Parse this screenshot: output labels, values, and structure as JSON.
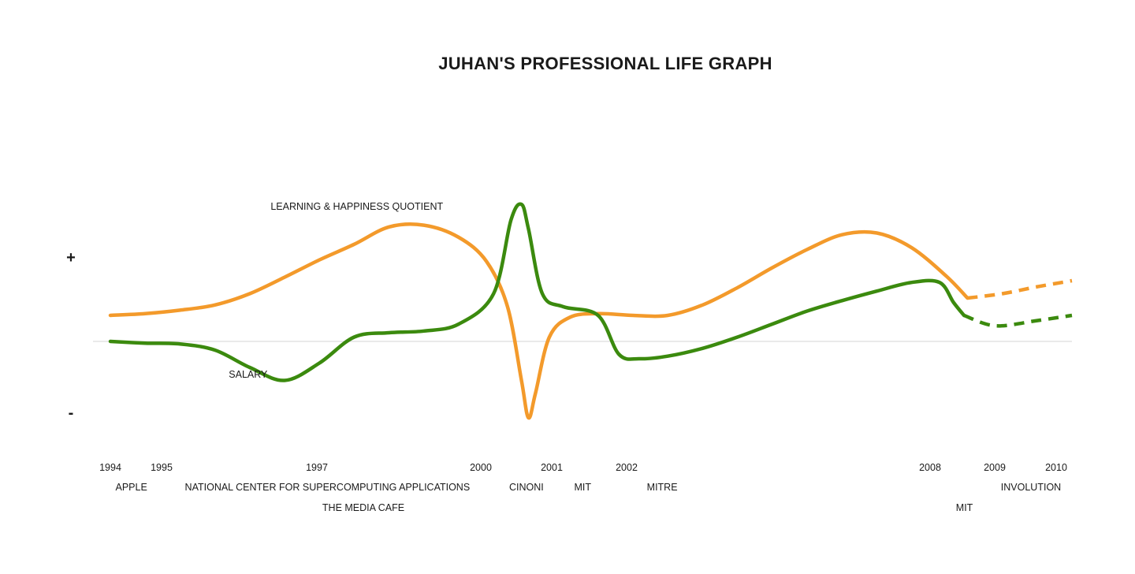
{
  "chart_data": {
    "type": "line",
    "title": "JUHAN'S PROFESSIONAL LIFE GRAPH",
    "y_axis": {
      "plus_label": "+",
      "minus_label": "-",
      "range": [
        -1,
        1
      ]
    },
    "colors": {
      "learning": "#f39a2b",
      "salary": "#3b8a0e",
      "baseline": "#dddddd"
    },
    "years": [
      "1994",
      "1995",
      "1997",
      "2000",
      "2001",
      "2002",
      "2008",
      "2009",
      "2010"
    ],
    "employers": [
      {
        "label": "APPLE",
        "year": 1994.1
      },
      {
        "label": "NATIONAL CENTER FOR SUPERCOMPUTING APPLICATIONS",
        "year": 1995.3
      },
      {
        "label": "THE MEDIA CAFE",
        "year": 1997.1,
        "row": 2
      },
      {
        "label": "CINONI",
        "year": 2000.4
      },
      {
        "label": "MIT",
        "year": 2001.3
      },
      {
        "label": "MITRE",
        "year": 2002.4
      },
      {
        "label": "INVOLUTION",
        "year": 2009.1
      },
      {
        "label": "MIT",
        "year": 2008.4,
        "row": 2
      }
    ],
    "series": [
      {
        "name": "LEARNING & HAPPINESS QUOTIENT",
        "key": "learning",
        "label_year": 1996.3,
        "label_value": 1.52,
        "solid": [
          [
            1994.0,
            0.3
          ],
          [
            1994.5,
            0.32
          ],
          [
            1995.0,
            0.36
          ],
          [
            1995.5,
            0.42
          ],
          [
            1996.0,
            0.55
          ],
          [
            1996.5,
            0.74
          ],
          [
            1997.0,
            0.94
          ],
          [
            1997.5,
            1.12
          ],
          [
            1998.0,
            1.32
          ],
          [
            1998.5,
            1.34
          ],
          [
            1999.0,
            1.2
          ],
          [
            1999.4,
            0.92
          ],
          [
            1999.7,
            0.4
          ],
          [
            1999.9,
            -0.45
          ],
          [
            2000.0,
            -0.88
          ],
          [
            2000.1,
            -0.6
          ],
          [
            2000.3,
            0.05
          ],
          [
            2000.6,
            0.28
          ],
          [
            2001.0,
            0.32
          ],
          [
            2001.5,
            0.3
          ],
          [
            2002.0,
            0.3
          ],
          [
            2002.5,
            0.42
          ],
          [
            2003.0,
            0.62
          ],
          [
            2003.5,
            0.85
          ],
          [
            2004.0,
            1.06
          ],
          [
            2004.5,
            1.23
          ],
          [
            2005.0,
            1.25
          ],
          [
            2005.5,
            1.08
          ],
          [
            2006.0,
            0.75
          ],
          [
            2006.3,
            0.5
          ]
        ],
        "projected": [
          [
            2006.3,
            0.5
          ],
          [
            2006.8,
            0.55
          ],
          [
            2007.3,
            0.63
          ],
          [
            2007.8,
            0.7
          ]
        ]
      },
      {
        "name": "SALARY",
        "key": "salary",
        "label_year": 1995.7,
        "label_value": -0.42,
        "solid": [
          [
            1994.0,
            0.0
          ],
          [
            1994.5,
            -0.02
          ],
          [
            1995.0,
            -0.03
          ],
          [
            1995.5,
            -0.1
          ],
          [
            1996.0,
            -0.3
          ],
          [
            1996.5,
            -0.45
          ],
          [
            1997.0,
            -0.25
          ],
          [
            1997.5,
            0.05
          ],
          [
            1998.0,
            0.1
          ],
          [
            1998.5,
            0.12
          ],
          [
            1999.0,
            0.2
          ],
          [
            1999.5,
            0.55
          ],
          [
            1999.75,
            1.4
          ],
          [
            1999.9,
            1.58
          ],
          [
            2000.0,
            1.3
          ],
          [
            2000.2,
            0.55
          ],
          [
            2000.5,
            0.4
          ],
          [
            2001.0,
            0.3
          ],
          [
            2001.3,
            -0.15
          ],
          [
            2001.6,
            -0.2
          ],
          [
            2002.0,
            -0.17
          ],
          [
            2002.5,
            -0.08
          ],
          [
            2003.0,
            0.05
          ],
          [
            2003.5,
            0.2
          ],
          [
            2004.0,
            0.35
          ],
          [
            2004.5,
            0.47
          ],
          [
            2005.0,
            0.58
          ],
          [
            2005.5,
            0.68
          ],
          [
            2005.9,
            0.68
          ],
          [
            2006.1,
            0.45
          ],
          [
            2006.25,
            0.3
          ]
        ],
        "projected": [
          [
            2006.25,
            0.3
          ],
          [
            2006.7,
            0.18
          ],
          [
            2007.3,
            0.24
          ],
          [
            2007.8,
            0.3
          ]
        ]
      }
    ]
  }
}
